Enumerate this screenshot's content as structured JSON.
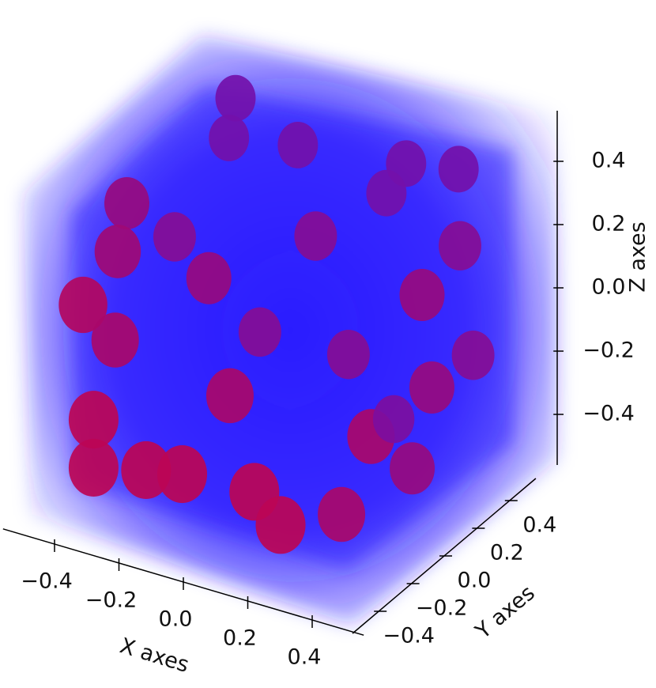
{
  "chart_data": {
    "type": "scatter3d",
    "xlabel": "X axes",
    "ylabel": "Y axes",
    "zlabel": "Z axes",
    "xlim": [
      -0.5,
      0.5
    ],
    "ylim": [
      -0.5,
      0.5
    ],
    "zlim": [
      -0.5,
      0.5
    ],
    "xticks": [
      {
        "value": -0.4,
        "label": "−0.4"
      },
      {
        "value": -0.2,
        "label": "−0.2"
      },
      {
        "value": 0,
        "label": "0.0"
      },
      0.2,
      0.4
    ],
    "yticks": [
      {
        "value": -0.4,
        "label": "−0.4"
      },
      {
        "value": -0.2,
        "label": "−0.2"
      },
      {
        "value": 0,
        "label": "0.0"
      },
      0.2,
      0.4
    ],
    "zticks": [
      {
        "value": -0.4,
        "label": "−0.4"
      },
      {
        "value": -0.2,
        "label": "−0.2"
      },
      {
        "value": 0,
        "label": "0.0"
      },
      0.2,
      0.4
    ],
    "volume_color": "#2a1aff",
    "series": [
      {
        "color": "#e0002a",
        "x": [
          -0.4,
          -0.42,
          -0.21,
          0.12,
          0.28,
          -0.5,
          0.06,
          0.4,
          -0.47,
          -0.46,
          -0.25,
          0.4,
          0.44,
          -0.42,
          -0.07,
          -0.37,
          0.43,
          -0.37,
          -0.21,
          -0.1,
          0.12,
          0.2,
          0.27,
          0.37,
          0.36,
          -0.04,
          -0.47,
          -0.21,
          0.06,
          0.14
        ],
        "y": [
          0.4,
          0.4,
          0.4,
          0.4,
          0.4,
          0,
          0.4,
          0.2,
          -0.1,
          -0.3,
          0,
          0,
          0.2,
          -0.2,
          -0.2,
          -0.4,
          0,
          -0.4,
          -0.4,
          -0.4,
          -0.4,
          -0.4,
          -0.2,
          0,
          -0.2,
          0.2,
          0.2,
          0.2,
          0.2,
          0.3
        ],
        "z": [
          0.36,
          0.23,
          0.27,
          0.31,
          0.34,
          0.21,
          0.2,
          0.24,
          0.12,
          0.06,
          0.05,
          0.19,
          -0.09,
          -0.09,
          -0.16,
          -0.22,
          -0.09,
          -0.37,
          -0.33,
          -0.31,
          -0.3,
          -0.38,
          -0.43,
          -0.36,
          -0.16,
          0.14,
          0.01,
          -0.21,
          -0.2,
          -0.43
        ]
      }
    ]
  }
}
